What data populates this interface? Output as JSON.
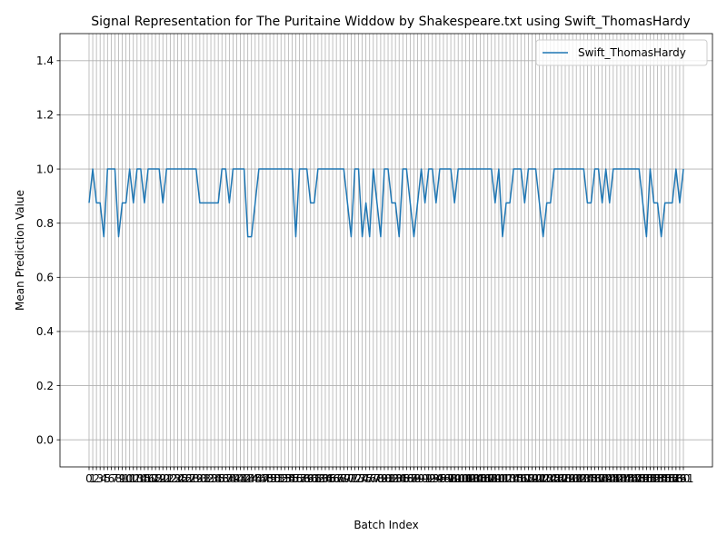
{
  "chart_data": {
    "type": "line",
    "title": "Signal Representation for The Puritaine Widdow by Shakespeare.txt using Swift_ThomasHardy",
    "xlabel": "Batch Index",
    "ylabel": "Mean Prediction Value",
    "ylim": [
      -0.1,
      1.5
    ],
    "yticks": [
      0.0,
      0.2,
      0.4,
      0.6,
      0.8,
      1.0,
      1.2,
      1.4
    ],
    "ytick_labels": [
      "0.0",
      "0.2",
      "0.4",
      "0.6",
      "0.8",
      "1.0",
      "1.2",
      "1.4"
    ],
    "grid": true,
    "legend_position": "top-right",
    "colors": {
      "series": "#1f77b4",
      "grid": "#b0b0b0"
    },
    "series": [
      {
        "name": "Swift_ThomasHardy",
        "values": [
          0.875,
          1.0,
          0.875,
          0.875,
          0.75,
          1.0,
          1.0,
          1.0,
          0.75,
          0.875,
          0.875,
          1.0,
          0.875,
          1.0,
          1.0,
          0.875,
          1.0,
          1.0,
          1.0,
          1.0,
          0.875,
          1.0,
          1.0,
          1.0,
          1.0,
          1.0,
          1.0,
          1.0,
          1.0,
          1.0,
          0.875,
          0.875,
          0.875,
          0.875,
          0.875,
          0.875,
          1.0,
          1.0,
          0.875,
          1.0,
          1.0,
          1.0,
          1.0,
          0.75,
          0.75,
          0.875,
          1.0,
          1.0,
          1.0,
          1.0,
          1.0,
          1.0,
          1.0,
          1.0,
          1.0,
          1.0,
          0.75,
          1.0,
          1.0,
          1.0,
          0.875,
          0.875,
          1.0,
          1.0,
          1.0,
          1.0,
          1.0,
          1.0,
          1.0,
          1.0,
          0.875,
          0.75,
          1.0,
          1.0,
          0.75,
          0.875,
          0.75,
          1.0,
          0.875,
          0.75,
          1.0,
          1.0,
          0.875,
          0.875,
          0.75,
          1.0,
          1.0,
          0.875,
          0.75,
          0.875,
          1.0,
          0.875,
          1.0,
          1.0,
          0.875,
          1.0,
          1.0,
          1.0,
          1.0,
          0.875,
          1.0,
          1.0,
          1.0,
          1.0,
          1.0,
          1.0,
          1.0,
          1.0,
          1.0,
          1.0,
          0.875,
          1.0,
          0.75,
          0.875,
          0.875,
          1.0,
          1.0,
          1.0,
          0.875,
          1.0,
          1.0,
          1.0,
          0.875,
          0.75,
          0.875,
          0.875,
          1.0,
          1.0,
          1.0,
          1.0,
          1.0,
          1.0,
          1.0,
          1.0,
          1.0,
          0.875,
          0.875,
          1.0,
          1.0,
          0.875,
          1.0,
          0.875,
          1.0,
          1.0,
          1.0,
          1.0,
          1.0,
          1.0,
          1.0,
          1.0,
          0.875,
          0.75,
          1.0,
          0.875,
          0.875,
          0.75,
          0.875,
          0.875,
          0.875,
          1.0,
          0.875,
          1.0
        ]
      }
    ]
  }
}
